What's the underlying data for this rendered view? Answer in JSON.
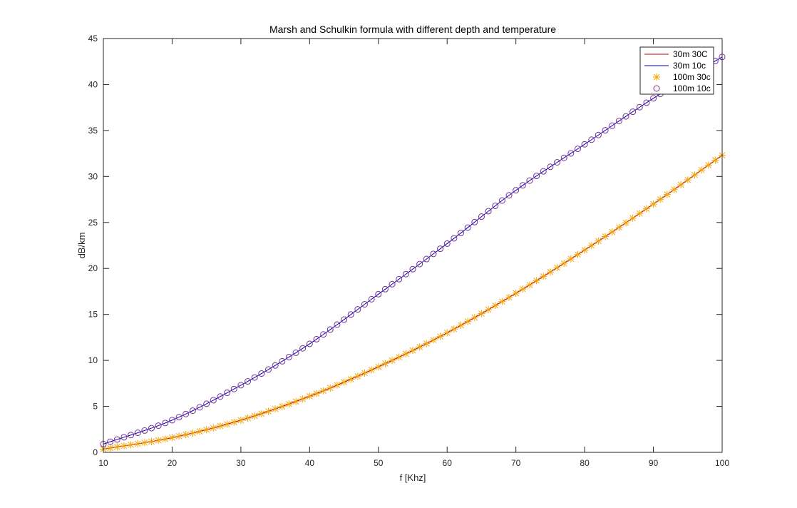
{
  "chart_data": {
    "type": "line",
    "title": "Marsh and Schulkin formula with different depth and temperature",
    "xlabel": "f [Khz]",
    "ylabel": "dB/km",
    "xlim": [
      10,
      100
    ],
    "ylim": [
      0,
      45
    ],
    "xticks": [
      10,
      20,
      30,
      40,
      50,
      60,
      70,
      80,
      90,
      100
    ],
    "yticks": [
      0,
      5,
      10,
      15,
      20,
      25,
      30,
      35,
      40,
      45
    ],
    "grid": false,
    "legend_position": "top-right",
    "x": [
      10,
      20,
      30,
      40,
      50,
      60,
      70,
      80,
      90,
      100
    ],
    "series": [
      {
        "name": "30m 30C",
        "style": "line",
        "color": "#c00000",
        "values": [
          0.35,
          1.6,
          3.5,
          6.1,
          9.3,
          13.0,
          17.3,
          22.0,
          27.0,
          32.3
        ]
      },
      {
        "name": "30m 10c",
        "style": "line",
        "color": "#0000c8",
        "values": [
          0.9,
          3.5,
          7.3,
          11.8,
          17.2,
          22.7,
          28.5,
          33.5,
          38.5,
          43.0
        ]
      },
      {
        "name": "100m 30c",
        "style": "marker-star",
        "color": "#f5a300",
        "values": [
          0.35,
          1.6,
          3.5,
          6.1,
          9.3,
          13.0,
          17.3,
          22.0,
          27.0,
          32.3
        ]
      },
      {
        "name": "100m 10c",
        "style": "marker-circle",
        "color": "#7e2f8e",
        "values": [
          0.9,
          3.5,
          7.3,
          11.8,
          17.2,
          22.7,
          28.5,
          33.5,
          38.5,
          43.0
        ]
      }
    ]
  }
}
